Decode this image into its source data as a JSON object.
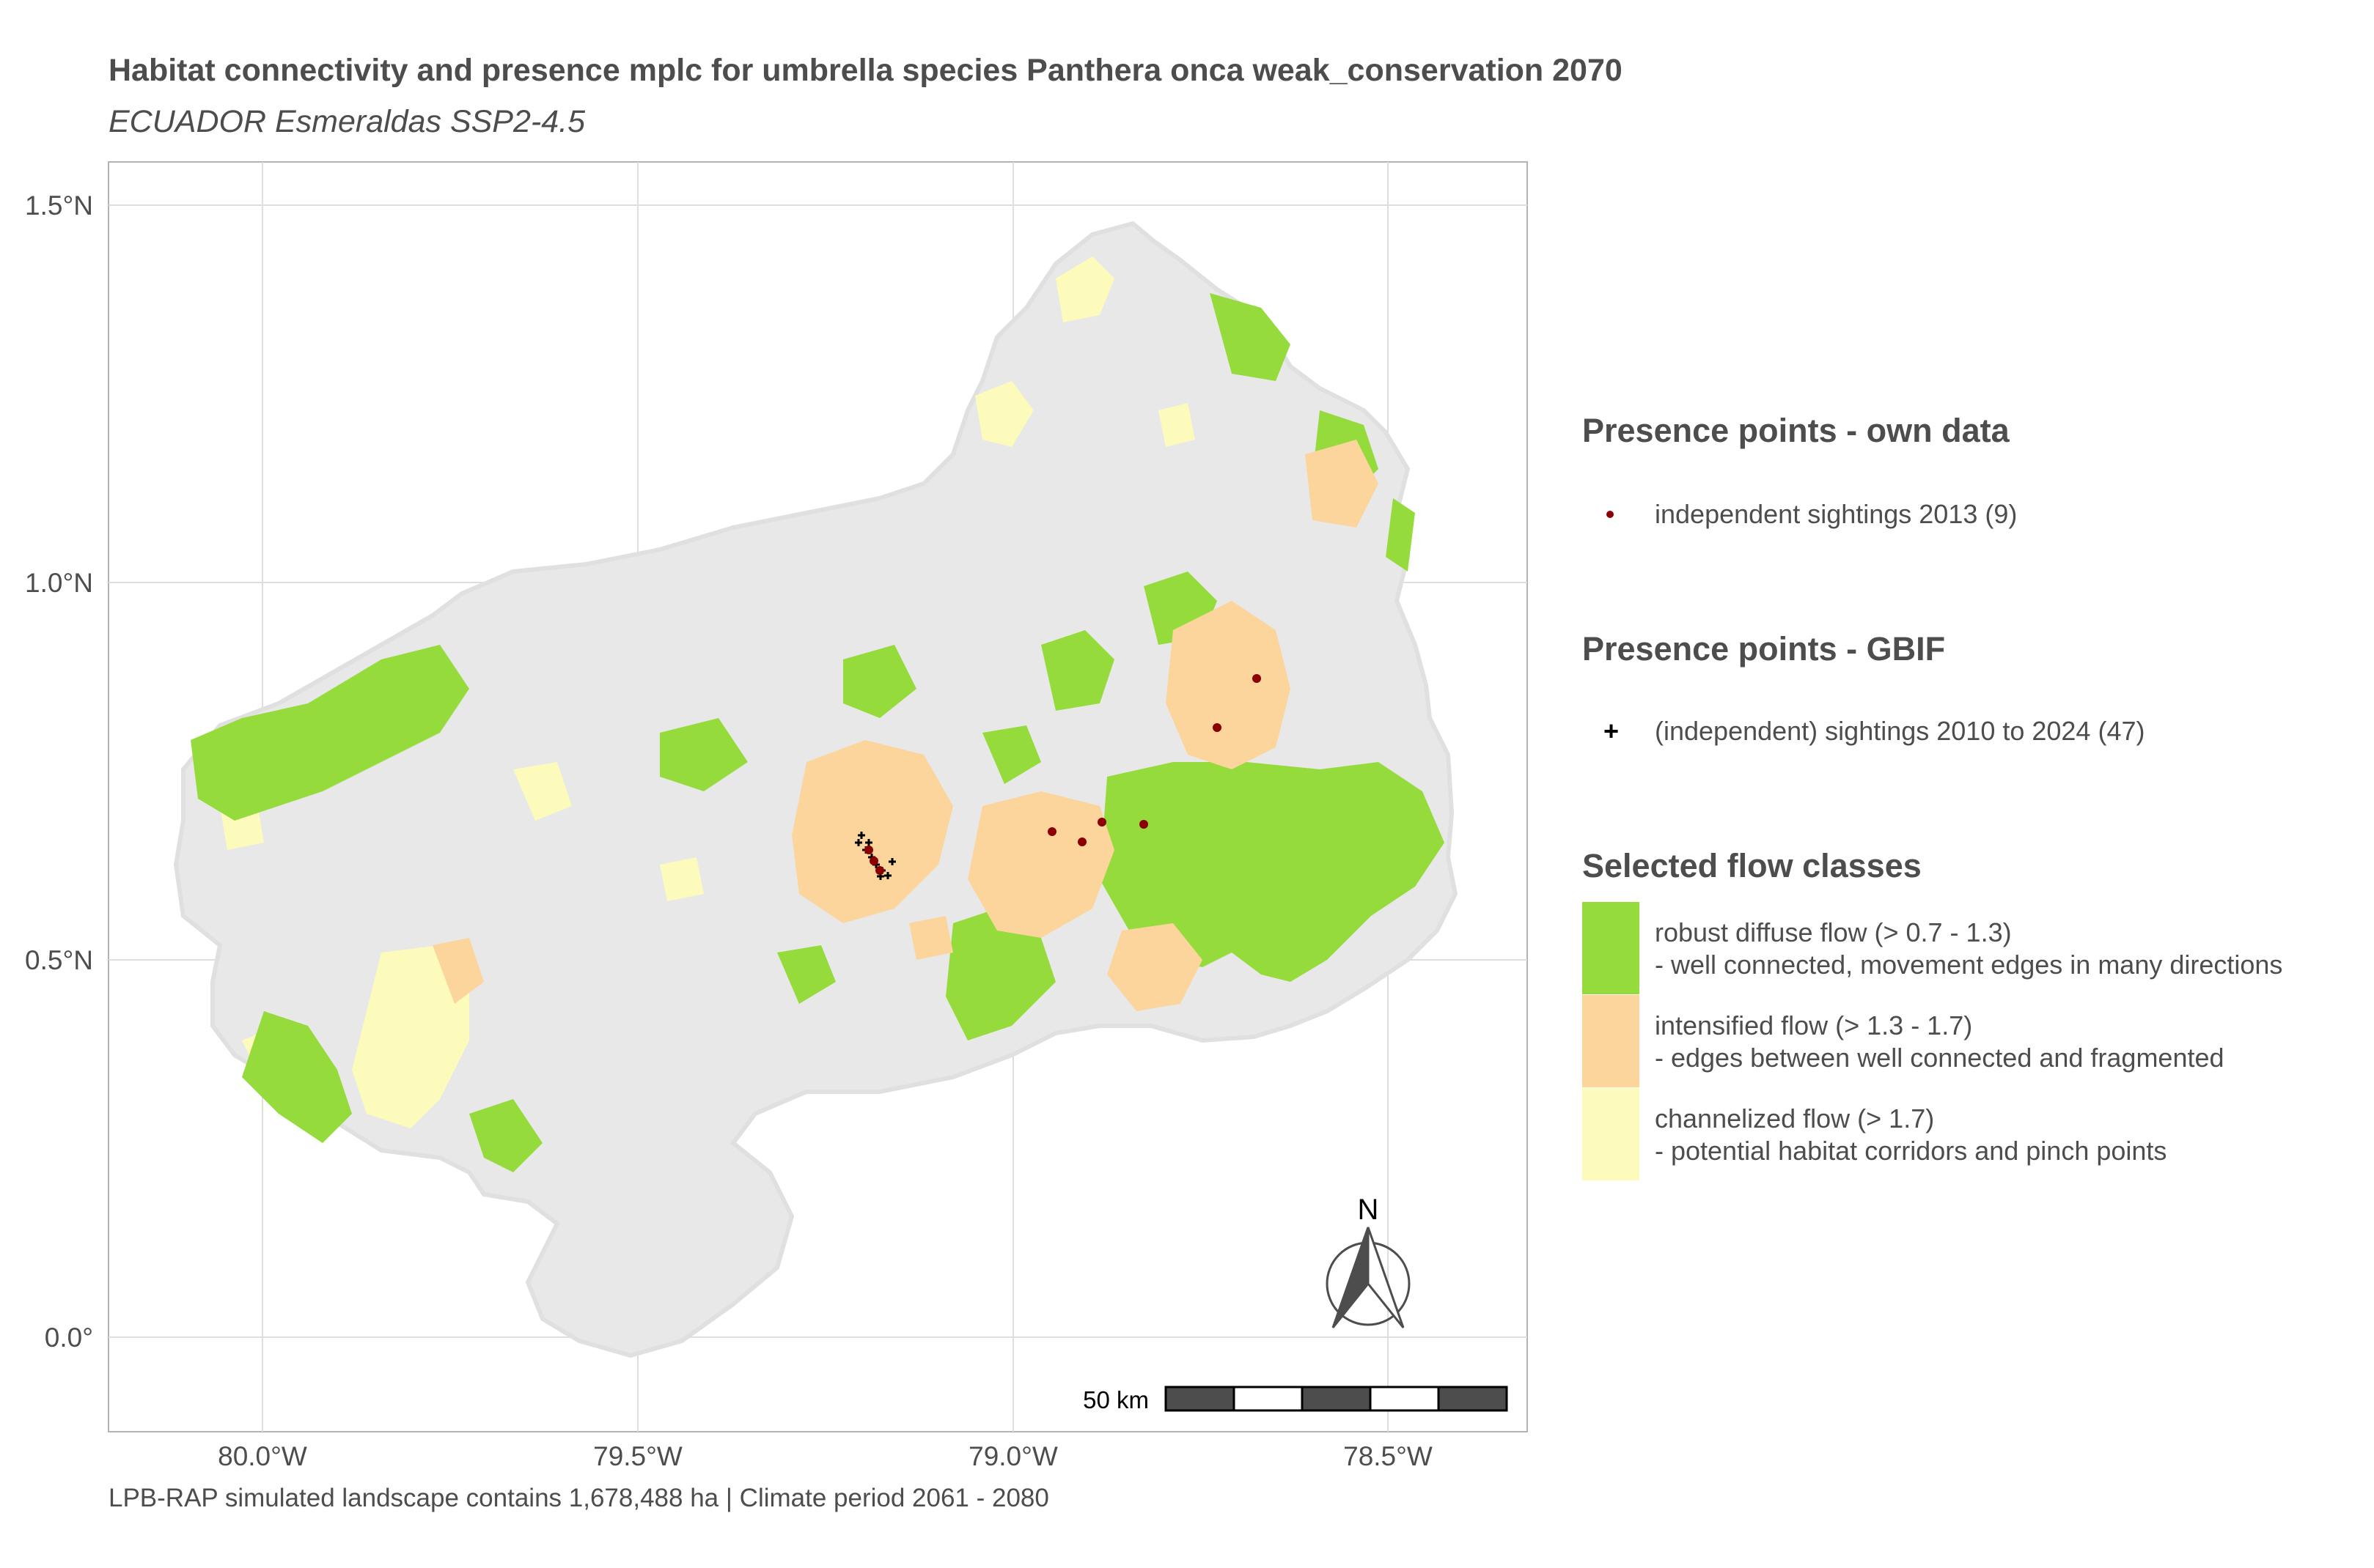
{
  "title": "Habitat connectivity and presence mplc for umbrella species Panthera onca weak_conservation 2070",
  "subtitle": "ECUADOR Esmeraldas SSP2-4.5",
  "caption": "LPB-RAP simulated landscape contains 1,678,488 ha | Climate period 2061 - 2080",
  "axes": {
    "y_ticks": [
      {
        "label": "1.5°N",
        "value": 1.5
      },
      {
        "label": "1.0°N",
        "value": 1.0
      },
      {
        "label": "0.5°N",
        "value": 0.5
      },
      {
        "label": "0.0°",
        "value": 0.0
      }
    ],
    "x_ticks": [
      {
        "label": "80.0°W",
        "value": -80.0
      },
      {
        "label": "79.5°W",
        "value": -79.5
      },
      {
        "label": "79.0°W",
        "value": -79.0
      },
      {
        "label": "78.5°W",
        "value": -78.5
      }
    ]
  },
  "legend": {
    "own_data": {
      "title": "Presence points - own data",
      "label": "independent sightings 2013 (9)",
      "color": "#8b0000"
    },
    "gbif": {
      "title": "Presence points - GBIF",
      "label": "(independent) sightings 2010 to 2024 (47)",
      "symbol": "+"
    },
    "flow": {
      "title": "Selected flow classes",
      "classes": [
        {
          "line1": "robust diffuse flow (> 0.7 - 1.3)",
          "line2": "- well connected, movement edges in many directions",
          "color": "#95db3c"
        },
        {
          "line1": "intensified flow (> 1.3 - 1.7)",
          "line2": "- edges between well connected and fragmented",
          "color": "#fcd59d"
        },
        {
          "line1": "channelized flow (> 1.7)",
          "line2": "- potential habitat corridors and pinch points",
          "color": "#fdfbbb"
        }
      ]
    }
  },
  "north_arrow": {
    "label": "N"
  },
  "scale_bar": {
    "label": "50 km"
  },
  "colors": {
    "landscape": "#e8e8e8",
    "grid": "#dedede",
    "panel_border": "#b3b3b3",
    "robust": "#95db3c",
    "intensified": "#fcd59d",
    "channelized": "#fdfbbb"
  }
}
